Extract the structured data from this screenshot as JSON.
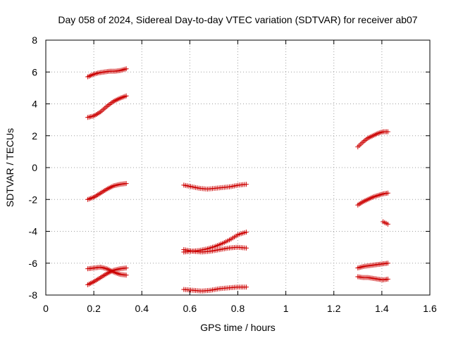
{
  "chart_data": {
    "type": "scatter",
    "title": "Day 058 of 2024, Sidereal Day-to-day VTEC variation (SDTVAR) for receiver ab07",
    "xlabel": "GPS time / hours",
    "ylabel": "SDTVAR / TECUs",
    "xlim": [
      0,
      1.6
    ],
    "ylim": [
      -8,
      8
    ],
    "xticks": [
      0,
      0.2,
      0.4,
      0.6,
      0.8,
      1,
      1.2,
      1.4,
      1.6
    ],
    "xtick_labels": [
      "0",
      "0.2",
      "0.4",
      "0.6",
      "0.8",
      "1",
      "1.2",
      "1.4",
      "1.6"
    ],
    "yticks": [
      -8,
      -6,
      -4,
      -2,
      0,
      2,
      4,
      6,
      8
    ],
    "ytick_labels": [
      "-8",
      "-6",
      "-4",
      "-2",
      "0",
      "2",
      "4",
      "6",
      "8"
    ],
    "grid": true,
    "marker": "+",
    "color": "#cc0000",
    "segments": [
      {
        "x0": 0.175,
        "x1": 0.335,
        "n": 28,
        "y": [
          5.7,
          5.85,
          5.95,
          6.0,
          6.05,
          6.05,
          6.1,
          6.2
        ]
      },
      {
        "x0": 0.175,
        "x1": 0.335,
        "n": 28,
        "y": [
          3.15,
          3.25,
          3.5,
          3.85,
          4.15,
          4.35,
          4.5
        ]
      },
      {
        "x0": 0.175,
        "x1": 0.335,
        "n": 28,
        "y": [
          -2.0,
          -1.85,
          -1.6,
          -1.35,
          -1.15,
          -1.05,
          -1.0
        ]
      },
      {
        "x0": 0.175,
        "x1": 0.335,
        "n": 28,
        "y": [
          -6.35,
          -6.3,
          -6.25,
          -6.35,
          -6.55,
          -6.7,
          -6.75
        ]
      },
      {
        "x0": 0.175,
        "x1": 0.335,
        "n": 28,
        "y": [
          -7.35,
          -7.15,
          -6.9,
          -6.65,
          -6.45,
          -6.35,
          -6.3
        ]
      },
      {
        "x0": 0.575,
        "x1": 0.835,
        "n": 38,
        "y": [
          -1.1,
          -1.2,
          -1.3,
          -1.35,
          -1.3,
          -1.25,
          -1.2,
          -1.1,
          -1.05
        ]
      },
      {
        "x0": 0.575,
        "x1": 0.835,
        "n": 38,
        "y": [
          -5.3,
          -5.25,
          -5.2,
          -5.1,
          -4.95,
          -4.75,
          -4.5,
          -4.2,
          -4.05
        ]
      },
      {
        "x0": 0.575,
        "x1": 0.835,
        "n": 38,
        "y": [
          -5.15,
          -5.25,
          -5.3,
          -5.25,
          -5.15,
          -5.05,
          -5.0,
          -5.05
        ]
      },
      {
        "x0": 0.575,
        "x1": 0.835,
        "n": 38,
        "y": [
          -7.65,
          -7.7,
          -7.75,
          -7.7,
          -7.6,
          -7.55,
          -7.5,
          -7.5
        ]
      },
      {
        "x0": 1.3,
        "x1": 1.425,
        "n": 22,
        "y": [
          1.3,
          1.6,
          1.85,
          2.0,
          2.15,
          2.25,
          2.25
        ]
      },
      {
        "x0": 1.3,
        "x1": 1.425,
        "n": 22,
        "y": [
          -2.35,
          -2.15,
          -2.0,
          -1.85,
          -1.75,
          -1.65,
          -1.6
        ]
      },
      {
        "x0": 1.3,
        "x1": 1.425,
        "n": 22,
        "y": [
          -6.3,
          -6.2,
          -6.15,
          -6.1,
          -6.05,
          -6.0
        ]
      },
      {
        "x0": 1.3,
        "x1": 1.425,
        "n": 22,
        "y": [
          -6.85,
          -6.9,
          -6.9,
          -6.95,
          -7.0,
          -7.05,
          -7.0
        ]
      },
      {
        "x0": 1.405,
        "x1": 1.425,
        "n": 4,
        "y": [
          -3.4,
          -3.55
        ]
      }
    ]
  }
}
